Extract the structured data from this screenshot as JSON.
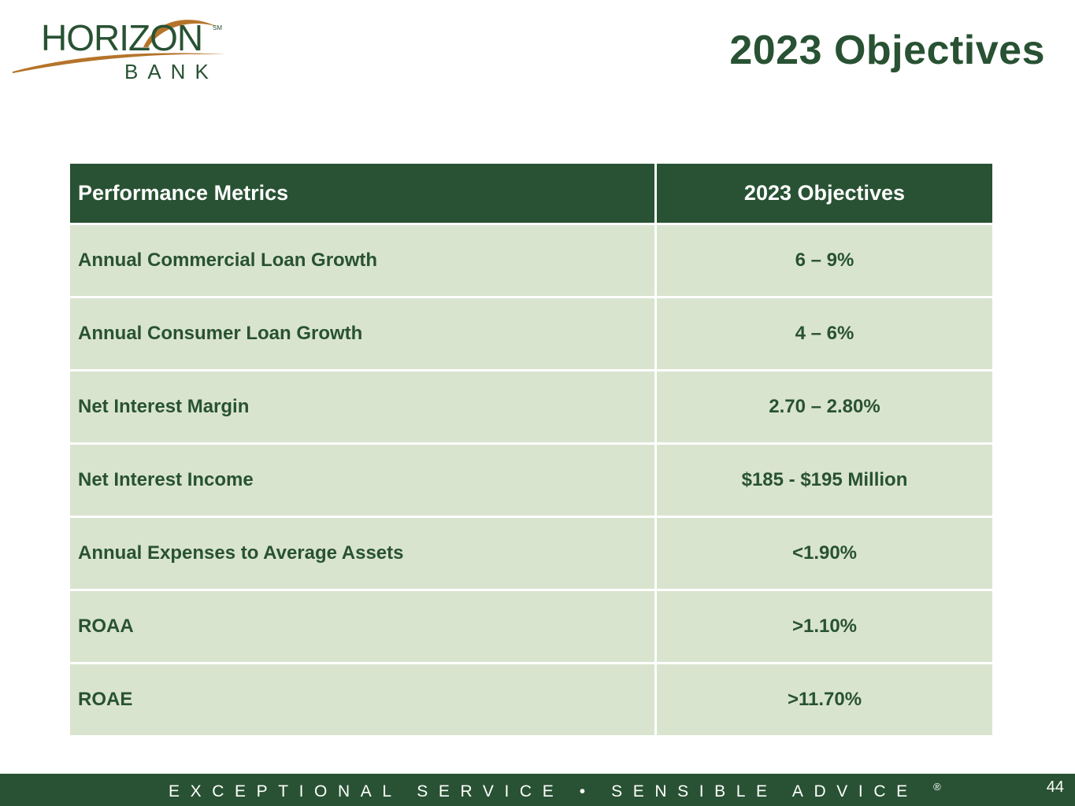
{
  "brand": {
    "name": "HORIZON",
    "sub": "BANK",
    "mark": "SM",
    "colors": {
      "green": "#285233",
      "gold": "#b5742a",
      "light_green": "#d9e4cf"
    }
  },
  "title": "2023 Objectives",
  "table": {
    "headers": [
      "Performance Metrics",
      "2023 Objectives"
    ],
    "rows": [
      {
        "metric": "Annual Commercial Loan Growth",
        "objective": "6 – 9%"
      },
      {
        "metric": "Annual Consumer Loan Growth",
        "objective": "4 – 6%"
      },
      {
        "metric": "Net Interest Margin",
        "objective": "2.70 – 2.80%"
      },
      {
        "metric": "Net Interest Income",
        "objective": "$185 - $195 Million"
      },
      {
        "metric": "Annual Expenses to Average Assets",
        "objective": "<1.90%"
      },
      {
        "metric": "ROAA",
        "objective": ">1.10%"
      },
      {
        "metric": "ROAE",
        "objective": ">11.70%"
      }
    ]
  },
  "footer": {
    "tagline": "EXCEPTIONAL SERVICE • SENSIBLE ADVICE",
    "registered": "®",
    "page_number": "44"
  }
}
